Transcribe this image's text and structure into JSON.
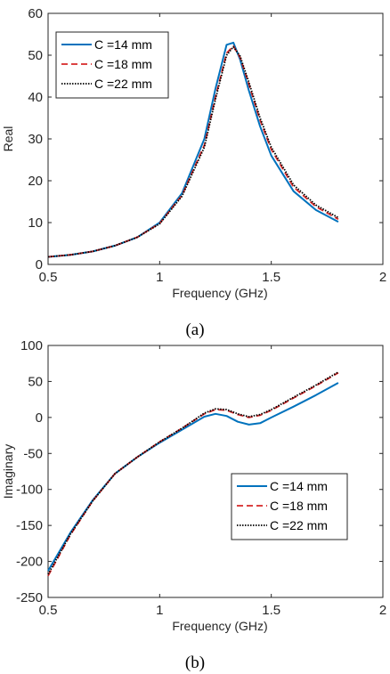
{
  "chart_data": [
    {
      "type": "line",
      "caption": "(a)",
      "ylabel": "Real",
      "xlabel": "Frequency (GHz)",
      "xlim": [
        0.5,
        2
      ],
      "ylim": [
        0,
        60
      ],
      "xticks": [
        0.5,
        1,
        1.5,
        2
      ],
      "xtick_labels": [
        "0.5",
        "1",
        "1.5",
        "2"
      ],
      "yticks": [
        0,
        10,
        20,
        30,
        40,
        50,
        60
      ],
      "ytick_labels": [
        "0",
        "10",
        "20",
        "30",
        "40",
        "50",
        "60"
      ],
      "grid": false,
      "legend_position": "top-left",
      "x": [
        0.5,
        0.6,
        0.7,
        0.8,
        0.9,
        1.0,
        1.1,
        1.2,
        1.25,
        1.3,
        1.33,
        1.36,
        1.4,
        1.45,
        1.5,
        1.6,
        1.7,
        1.8
      ],
      "series": [
        {
          "name": "C =14 mm",
          "color": "#0072BD",
          "dash": "solid",
          "values": [
            1.8,
            2.3,
            3.1,
            4.5,
            6.5,
            10.0,
            17.0,
            30.0,
            42.0,
            52.5,
            53.0,
            49.0,
            41.5,
            33.0,
            26.0,
            17.5,
            13.0,
            10.2
          ]
        },
        {
          "name": "C =18 mm",
          "color": "#D62728",
          "dash": "dashed",
          "values": [
            1.8,
            2.3,
            3.1,
            4.5,
            6.5,
            9.8,
            16.5,
            28.5,
            40.0,
            50.5,
            52.2,
            49.5,
            43.0,
            34.5,
            27.5,
            18.5,
            13.8,
            10.8
          ]
        },
        {
          "name": "C =22 mm",
          "color": "#000000",
          "dash": "dotted",
          "values": [
            1.8,
            2.3,
            3.1,
            4.5,
            6.5,
            9.7,
            16.3,
            28.0,
            39.5,
            50.0,
            52.0,
            49.8,
            43.5,
            35.0,
            28.0,
            19.0,
            14.2,
            11.2
          ]
        }
      ]
    },
    {
      "type": "line",
      "caption": "(b)",
      "ylabel": "Imaginary",
      "xlabel": "Frequency (GHz)",
      "xlim": [
        0.5,
        2
      ],
      "ylim": [
        -250,
        100
      ],
      "xticks": [
        0.5,
        1,
        1.5,
        2
      ],
      "xtick_labels": [
        "0.5",
        "1",
        "1.5",
        "2"
      ],
      "yticks": [
        -250,
        -200,
        -150,
        -100,
        -50,
        0,
        50,
        100
      ],
      "ytick_labels": [
        "-250",
        "-200",
        "-150",
        "-100",
        "-50",
        "0",
        "50",
        "100"
      ],
      "grid": false,
      "legend_position": "center-right",
      "x": [
        0.5,
        0.6,
        0.7,
        0.8,
        0.9,
        1.0,
        1.1,
        1.2,
        1.25,
        1.3,
        1.35,
        1.4,
        1.45,
        1.5,
        1.6,
        1.7,
        1.8
      ],
      "series": [
        {
          "name": "C =14 mm",
          "color": "#0072BD",
          "dash": "solid",
          "values": [
            -213,
            -160,
            -115,
            -78,
            -55,
            -35,
            -17,
            1,
            5,
            2,
            -6,
            -10,
            -8,
            0,
            15,
            31,
            48
          ]
        },
        {
          "name": "C =18 mm",
          "color": "#D62728",
          "dash": "dashed",
          "values": [
            -220,
            -163,
            -116,
            -78,
            -55,
            -34,
            -15,
            5,
            11,
            10,
            4,
            0,
            3,
            10,
            27,
            44,
            62
          ]
        },
        {
          "name": "C =22 mm",
          "color": "#000000",
          "dash": "dotted",
          "values": [
            -218,
            -162,
            -116,
            -78,
            -55,
            -34,
            -15,
            6,
            12,
            11,
            5,
            1,
            4,
            11,
            28,
            45,
            63
          ]
        }
      ]
    }
  ]
}
